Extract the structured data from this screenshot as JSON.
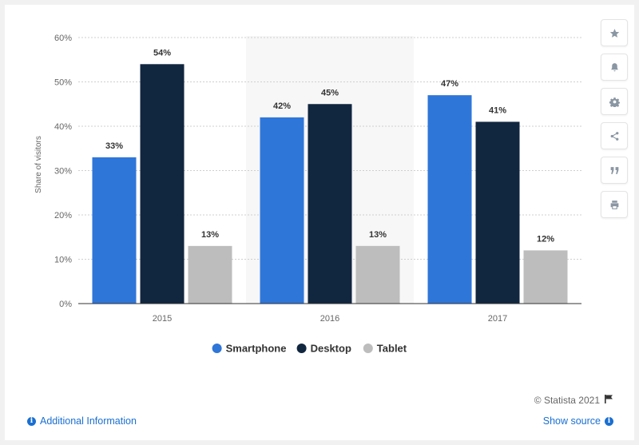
{
  "chart_data": {
    "type": "bar",
    "categories": [
      "2015",
      "2016",
      "2017"
    ],
    "series": [
      {
        "name": "Smartphone",
        "values": [
          33,
          42,
          47
        ],
        "color": "#2f76d9"
      },
      {
        "name": "Desktop",
        "values": [
          54,
          45,
          41
        ],
        "color": "#11263f"
      },
      {
        "name": "Tablet",
        "values": [
          13,
          13,
          12
        ],
        "color": "#bdbdbd"
      }
    ],
    "value_labels": [
      [
        "33%",
        "42%",
        "47%"
      ],
      [
        "54%",
        "45%",
        "41%"
      ],
      [
        "13%",
        "13%",
        "12%"
      ]
    ],
    "ylabel": "Share of visitors",
    "ylim": [
      0,
      60
    ],
    "yticks": [
      0,
      10,
      20,
      30,
      40,
      50,
      60
    ],
    "ytick_labels": [
      "0%",
      "10%",
      "20%",
      "30%",
      "40%",
      "50%",
      "60%"
    ],
    "grid": true,
    "legend_position": "bottom",
    "highlighted_category": "2016",
    "highlight_color": "#f7f7f7"
  },
  "toolbar": {
    "items": [
      {
        "name": "favorite",
        "icon": "star-icon"
      },
      {
        "name": "notification",
        "icon": "bell-icon"
      },
      {
        "name": "settings",
        "icon": "gear-icon"
      },
      {
        "name": "share",
        "icon": "share-icon"
      },
      {
        "name": "cite",
        "icon": "quote-icon"
      },
      {
        "name": "print",
        "icon": "print-icon"
      }
    ]
  },
  "footer": {
    "credit": "© Statista 2021",
    "additional_info": "Additional Information",
    "show_source": "Show source"
  }
}
